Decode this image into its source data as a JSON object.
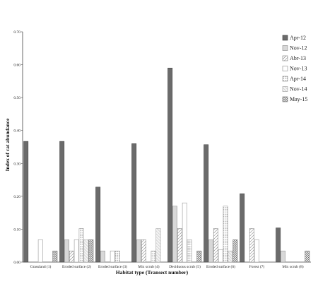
{
  "chart_data": {
    "type": "bar",
    "title": "",
    "xlabel": "Habitat type (Transect number)",
    "ylabel": "Index of cat abundance",
    "ylim": [
      0,
      0.7
    ],
    "yticks": [
      "0.00",
      "0.10",
      "0.20",
      "0.30",
      "0.40",
      "0.50",
      "0.60",
      "0.70"
    ],
    "legend_position": "top-right",
    "grid": false,
    "categories": [
      "Grassland (1)",
      "Eroded surface (2)",
      "Eroded surface (3)",
      "Mix scrub (4)",
      "Deciduous scrub (5)",
      "Eroded surface (6)",
      "Forest (7)",
      "Mix scrub (8)"
    ],
    "series": [
      {
        "name": "Apr-12",
        "pattern": "solid-dark",
        "values": [
          0.367,
          0.367,
          0.228,
          0.36,
          0.59,
          0.357,
          0.208,
          0.104
        ]
      },
      {
        "name": "Nov-12",
        "pattern": "light-grey",
        "values": [
          0.0,
          0.068,
          0.034,
          0.068,
          0.17,
          0.068,
          0.0,
          0.034
        ]
      },
      {
        "name": "Abr-13",
        "pattern": "diagonal-lines",
        "values": [
          0.0,
          0.034,
          0.0,
          0.068,
          0.102,
          0.102,
          0.102,
          0.0
        ]
      },
      {
        "name": "Nov-13",
        "pattern": "white",
        "values": [
          0.068,
          0.068,
          0.034,
          0.0,
          0.18,
          0.038,
          0.068,
          0.0
        ]
      },
      {
        "name": "Apr-14",
        "pattern": "dotted",
        "values": [
          0.0,
          0.102,
          0.034,
          0.034,
          0.068,
          0.17,
          0.0,
          0.0
        ]
      },
      {
        "name": "Nov-14",
        "pattern": "hatched-light",
        "values": [
          0.0,
          0.068,
          0.0,
          0.102,
          0.0,
          0.034,
          0.0,
          0.0
        ]
      },
      {
        "name": "May-15",
        "pattern": "crosshatch",
        "values": [
          0.034,
          0.068,
          0.0,
          0.0,
          0.034,
          0.068,
          0.0,
          0.034
        ]
      }
    ]
  }
}
